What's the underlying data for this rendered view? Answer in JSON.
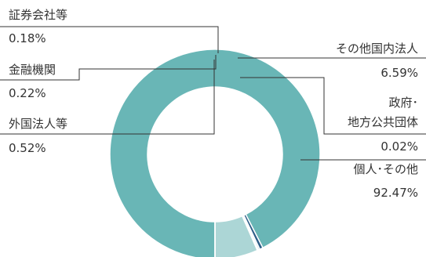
{
  "chart_data": {
    "type": "pie",
    "variant": "donut",
    "slices": [
      {
        "name": "個人・その他",
        "name_lines": [
          "個人･その他"
        ],
        "value": 92.47,
        "display": "92.47%",
        "color": "#69b6b6"
      },
      {
        "name": "外国法人等",
        "name_lines": [
          "外国法人等"
        ],
        "value": 0.52,
        "display": "0.52%",
        "color": "#2e5f88"
      },
      {
        "name": "金融機関",
        "name_lines": [
          "金融機関"
        ],
        "value": 0.22,
        "display": "0.22%",
        "color": "#8bbcd0"
      },
      {
        "name": "証券会社等",
        "name_lines": [
          "証券会社等"
        ],
        "value": 0.18,
        "display": "0.18%",
        "color": "#b14a4a"
      },
      {
        "name": "その他国内法人",
        "name_lines": [
          "その他国内法人"
        ],
        "value": 6.59,
        "display": "6.59%",
        "color": "#acd6d6"
      },
      {
        "name": "政府・地方公共団体",
        "name_lines": [
          "政府･",
          "地方公共団体"
        ],
        "value": 0.02,
        "display": "0.02%",
        "color": "#d9ecec"
      }
    ],
    "legend": "callout labels with leader lines"
  }
}
